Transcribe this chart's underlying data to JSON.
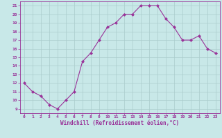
{
  "x": [
    0,
    1,
    2,
    3,
    4,
    5,
    6,
    7,
    8,
    9,
    10,
    11,
    12,
    13,
    14,
    15,
    16,
    17,
    18,
    19,
    20,
    21,
    22,
    23
  ],
  "y": [
    12.0,
    11.0,
    10.5,
    9.5,
    9.0,
    10.0,
    11.0,
    14.5,
    15.5,
    17.0,
    18.5,
    19.0,
    20.0,
    20.0,
    21.0,
    21.0,
    21.0,
    19.5,
    18.5,
    17.0,
    17.0,
    17.5,
    16.0,
    15.5
  ],
  "line_color": "#993399",
  "marker": "D",
  "marker_size": 2,
  "bg_color": "#c8e8e8",
  "grid_color": "#aacccc",
  "xlabel": "Windchill (Refroidissement éolien,°C)",
  "xlabel_color": "#993399",
  "tick_color": "#993399",
  "ylim": [
    9,
    21
  ],
  "xlim": [
    0,
    23
  ],
  "yticks": [
    9,
    10,
    11,
    12,
    13,
    14,
    15,
    16,
    17,
    18,
    19,
    20,
    21
  ],
  "xticks": [
    0,
    1,
    2,
    3,
    4,
    5,
    6,
    7,
    8,
    9,
    10,
    11,
    12,
    13,
    14,
    15,
    16,
    17,
    18,
    19,
    20,
    21,
    22,
    23
  ],
  "title_color": "#993399"
}
